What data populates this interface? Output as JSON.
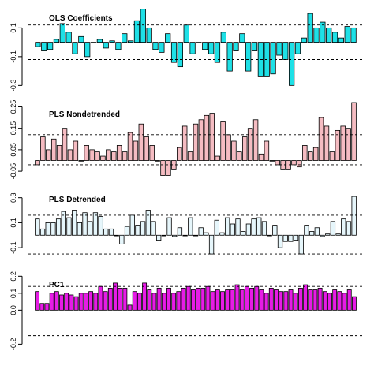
{
  "chart_data": [
    {
      "type": "bar",
      "title": "OLS Coefficients",
      "color": "#1ee0e6",
      "ylim": [
        -0.32,
        0.25
      ],
      "yticks": [
        0.1,
        -0.1,
        -0.3
      ],
      "ytick_labels": [
        "0.1",
        "-0.1",
        "-0.3"
      ],
      "ref_lines": [
        0.12,
        -0.12
      ],
      "values": [
        -0.03,
        -0.06,
        -0.05,
        0.02,
        0.13,
        0.07,
        -0.08,
        0.04,
        -0.1,
        0.0,
        0.02,
        -0.04,
        0.01,
        -0.05,
        0.06,
        0.01,
        0.15,
        0.23,
        0.1,
        -0.05,
        -0.07,
        0.06,
        -0.14,
        -0.17,
        0.12,
        -0.08,
        0.0,
        -0.05,
        -0.08,
        -0.14,
        0.07,
        -0.2,
        -0.06,
        0.06,
        -0.2,
        -0.06,
        -0.24,
        -0.24,
        -0.22,
        -0.09,
        -0.12,
        -0.3,
        -0.08,
        0.03,
        0.2,
        0.1,
        0.14,
        0.1,
        0.07,
        0.03,
        0.11,
        0.1
      ]
    },
    {
      "type": "bar",
      "title": "PLS Nondetrended",
      "color": "#f5bcc2",
      "ylim": [
        -0.09,
        0.27
      ],
      "yticks": [
        0.25,
        0.15,
        0.05,
        -0.05
      ],
      "ytick_labels": [
        "0.25",
        "0.15",
        "0.05",
        "-0.05"
      ],
      "ref_lines": [
        0.12,
        -0.02
      ],
      "values": [
        -0.02,
        0.11,
        0.05,
        0.1,
        0.07,
        0.15,
        0.05,
        0.09,
        0.0,
        0.07,
        0.05,
        0.04,
        0.02,
        0.05,
        0.04,
        0.07,
        0.04,
        0.13,
        0.09,
        0.17,
        0.11,
        0.07,
        0.0,
        -0.07,
        -0.07,
        -0.04,
        0.06,
        0.16,
        0.04,
        0.17,
        0.19,
        0.21,
        0.22,
        0.02,
        0.18,
        0.12,
        0.09,
        0.04,
        0.11,
        0.15,
        0.19,
        0.03,
        0.09,
        0.0,
        -0.02,
        -0.04,
        -0.04,
        -0.02,
        -0.03,
        0.07,
        0.04,
        0.06,
        0.2,
        0.16,
        0.04,
        0.14,
        0.16,
        0.15,
        0.27
      ]
    },
    {
      "type": "bar",
      "title": "PLS Detrended",
      "color": "#e6f6fb",
      "ylim": [
        -0.2,
        0.38
      ],
      "yticks": [
        0.3,
        0.1,
        -0.1
      ],
      "ytick_labels": [
        "0.3",
        "0.1",
        "-0.1"
      ],
      "ref_lines": [
        0.16,
        -0.15
      ],
      "values": [
        0.13,
        0.05,
        0.1,
        0.1,
        0.13,
        0.19,
        0.14,
        0.2,
        0.1,
        0.18,
        0.11,
        0.18,
        0.15,
        0.05,
        0.05,
        0.0,
        -0.07,
        0.07,
        0.16,
        0.08,
        0.11,
        0.2,
        0.11,
        -0.04,
        0.0,
        0.14,
        -0.01,
        0.06,
        0.0,
        0.14,
        0.0,
        0.06,
        0.02,
        -0.15,
        0.12,
        0.02,
        0.14,
        0.09,
        0.13,
        0.03,
        0.09,
        0.13,
        0.14,
        0.11,
        0.0,
        0.08,
        -0.1,
        -0.05,
        -0.05,
        -0.04,
        -0.15,
        0.08,
        0.03,
        0.06,
        -0.01,
        0.01,
        0.11,
        0.01,
        0.13,
        0.11,
        0.31
      ]
    },
    {
      "type": "bar",
      "title": "PC1",
      "color": "#e71ce6",
      "ylim": [
        -0.24,
        0.22
      ],
      "yticks": [
        0.2,
        0.1,
        0.0,
        -0.2
      ],
      "ytick_labels": [
        "0.2",
        "0.1",
        "0.0",
        "-0.2"
      ],
      "ref_lines": [
        0.14,
        -0.15
      ],
      "values": [
        0.11,
        0.04,
        0.04,
        0.1,
        0.11,
        0.09,
        0.1,
        0.09,
        0.08,
        0.1,
        0.1,
        0.11,
        0.1,
        0.14,
        0.11,
        0.13,
        0.16,
        0.13,
        0.13,
        0.03,
        0.11,
        0.1,
        0.16,
        0.12,
        0.1,
        0.13,
        0.1,
        0.13,
        0.1,
        0.11,
        0.13,
        0.14,
        0.12,
        0.13,
        0.13,
        0.14,
        0.11,
        0.12,
        0.11,
        0.12,
        0.12,
        0.15,
        0.12,
        0.14,
        0.13,
        0.14,
        0.12,
        0.1,
        0.13,
        0.12,
        0.11,
        0.11,
        0.12,
        0.1,
        0.13,
        0.15,
        0.12,
        0.12,
        0.13,
        0.11,
        0.1,
        0.12,
        0.11,
        0.1,
        0.12,
        0.08
      ]
    }
  ]
}
